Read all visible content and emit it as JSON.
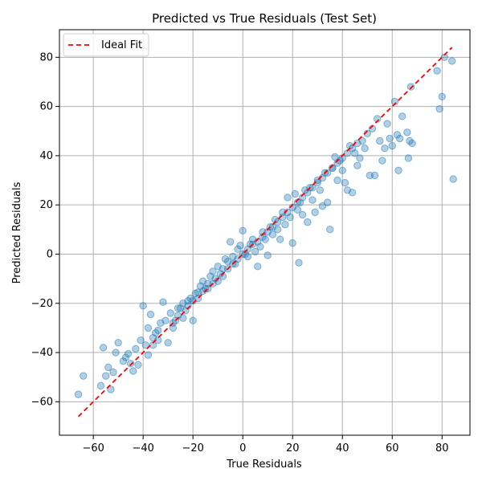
{
  "chart_data": {
    "type": "scatter",
    "title": "Predicted vs True Residuals (Test Set)",
    "xlabel": "True Residuals",
    "ylabel": "Predicted Residuals",
    "xlim": [
      -73.6,
      91.2
    ],
    "ylim": [
      -73.6,
      91.2
    ],
    "x_ticks": [
      -60,
      -40,
      -20,
      0,
      20,
      40,
      60,
      80
    ],
    "y_ticks": [
      -60,
      -40,
      -20,
      0,
      20,
      40,
      60,
      80
    ],
    "grid": true,
    "legend_position": "top-left",
    "ideal_fit": {
      "name": "Ideal Fit",
      "x": [
        -66,
        84
      ],
      "y": [
        -66,
        84
      ],
      "color": "#ff0000",
      "style": "dashed"
    },
    "series": [
      {
        "color": "#1f77b4",
        "opacity": 0.35,
        "points": [
          [
            -66,
            -57
          ],
          [
            -64,
            -49.5
          ],
          [
            -57,
            -53.5
          ],
          [
            -56,
            -38
          ],
          [
            -55,
            -49.5
          ],
          [
            -54,
            -46
          ],
          [
            -53,
            -55
          ],
          [
            -52,
            -48
          ],
          [
            -51,
            -40
          ],
          [
            -50,
            -36
          ],
          [
            -48,
            -43.5
          ],
          [
            -47,
            -42
          ],
          [
            -46,
            -40.5
          ],
          [
            -45,
            -44.5
          ],
          [
            -44,
            -47.5
          ],
          [
            -43,
            -38.5
          ],
          [
            -42,
            -45
          ],
          [
            -41,
            -35
          ],
          [
            -40,
            -21
          ],
          [
            -39,
            -37
          ],
          [
            -38,
            -30
          ],
          [
            -37,
            -24.5
          ],
          [
            -36,
            -34
          ],
          [
            -35,
            -32
          ],
          [
            -34,
            -31
          ],
          [
            -33,
            -28
          ],
          [
            -32,
            -19.5
          ],
          [
            -31,
            -27
          ],
          [
            -30,
            -36
          ],
          [
            -29,
            -24
          ],
          [
            -28,
            -30
          ],
          [
            -27,
            -27
          ],
          [
            -26,
            -25
          ],
          [
            -25,
            -22
          ],
          [
            -24,
            -20
          ],
          [
            -23,
            -23
          ],
          [
            -22,
            -19
          ],
          [
            -21,
            -18
          ],
          [
            -20,
            -27
          ],
          [
            -19,
            -16
          ],
          [
            -18,
            -15.5
          ],
          [
            -17,
            -13
          ],
          [
            -16,
            -11
          ],
          [
            -15,
            -14
          ],
          [
            -14,
            -12
          ],
          [
            -13,
            -9
          ],
          [
            -12,
            -7
          ],
          [
            -11,
            -10
          ],
          [
            -10,
            -5
          ],
          [
            -9,
            -8
          ],
          [
            -8,
            -6
          ],
          [
            -7,
            -2
          ],
          [
            -6,
            -3
          ],
          [
            -5,
            5
          ],
          [
            -4,
            -1
          ],
          [
            -3,
            -4
          ],
          [
            -2,
            2
          ],
          [
            -1,
            3.5
          ],
          [
            0,
            9.5
          ],
          [
            1,
            0
          ],
          [
            2,
            -1
          ],
          [
            3,
            4
          ],
          [
            4,
            6
          ],
          [
            5,
            1
          ],
          [
            6,
            -5
          ],
          [
            7,
            3
          ],
          [
            8,
            9
          ],
          [
            9,
            6
          ],
          [
            10,
            -0.5
          ],
          [
            11,
            11
          ],
          [
            12,
            8
          ],
          [
            13,
            14
          ],
          [
            14,
            10
          ],
          [
            15,
            6
          ],
          [
            16,
            17
          ],
          [
            17,
            12
          ],
          [
            18,
            23
          ],
          [
            19,
            15
          ],
          [
            20,
            4.5
          ],
          [
            21,
            24.5
          ],
          [
            22,
            18
          ],
          [
            22.5,
            -3.5
          ],
          [
            23,
            21
          ],
          [
            24,
            16
          ],
          [
            25,
            26
          ],
          [
            26,
            13
          ],
          [
            27,
            27
          ],
          [
            28,
            22
          ],
          [
            29,
            17
          ],
          [
            30,
            30
          ],
          [
            31,
            26
          ],
          [
            32,
            19.5
          ],
          [
            33,
            33
          ],
          [
            34,
            21
          ],
          [
            35,
            10
          ],
          [
            36,
            35
          ],
          [
            37,
            39.5
          ],
          [
            38,
            30
          ],
          [
            39,
            38
          ],
          [
            40,
            34
          ],
          [
            41,
            29
          ],
          [
            42,
            26
          ],
          [
            43,
            44
          ],
          [
            44,
            25
          ],
          [
            45,
            41
          ],
          [
            46,
            36
          ],
          [
            47,
            39
          ],
          [
            48,
            46
          ],
          [
            49,
            43
          ],
          [
            50,
            49
          ],
          [
            51,
            32
          ],
          [
            52,
            51
          ],
          [
            53,
            32
          ],
          [
            54,
            55
          ],
          [
            55,
            46
          ],
          [
            56,
            38
          ],
          [
            57,
            43
          ],
          [
            58,
            53
          ],
          [
            59,
            47
          ],
          [
            60,
            44
          ],
          [
            61,
            62
          ],
          [
            62,
            48.5
          ],
          [
            62.5,
            34
          ],
          [
            63,
            47
          ],
          [
            64,
            56
          ],
          [
            66,
            49.5
          ],
          [
            66.5,
            39
          ],
          [
            67,
            46
          ],
          [
            67.5,
            68
          ],
          [
            68,
            45
          ],
          [
            78,
            74.5
          ],
          [
            79,
            59
          ],
          [
            80,
            64
          ],
          [
            81,
            80
          ],
          [
            84,
            78.5
          ],
          [
            84.5,
            30.5
          ],
          [
            -38,
            -41
          ],
          [
            -36,
            -37
          ],
          [
            -34,
            -35
          ],
          [
            -28,
            -28
          ],
          [
            -26,
            -22
          ],
          [
            -24,
            -26
          ],
          [
            -22,
            -21
          ],
          [
            -20,
            -19
          ],
          [
            -18,
            -18
          ],
          [
            -16,
            -15
          ],
          [
            -14,
            -14
          ],
          [
            -12,
            -12
          ],
          [
            -10,
            -11
          ],
          [
            -8,
            -9
          ],
          [
            -6,
            -6
          ],
          [
            -4,
            -4
          ],
          [
            -2,
            -2
          ],
          [
            0,
            0
          ],
          [
            2,
            2
          ],
          [
            4,
            4
          ],
          [
            6,
            5
          ],
          [
            8,
            7
          ],
          [
            10,
            9
          ],
          [
            12,
            11
          ],
          [
            14,
            13
          ],
          [
            16,
            15
          ],
          [
            18,
            17
          ],
          [
            20,
            19
          ],
          [
            22,
            21
          ],
          [
            24,
            23
          ],
          [
            26,
            25
          ],
          [
            28,
            27
          ],
          [
            30,
            29
          ],
          [
            32,
            31
          ],
          [
            34,
            33
          ],
          [
            36,
            35
          ],
          [
            38,
            37
          ],
          [
            40,
            39
          ],
          [
            42,
            41
          ],
          [
            44,
            43
          ],
          [
            46,
            45
          ]
        ]
      }
    ]
  }
}
